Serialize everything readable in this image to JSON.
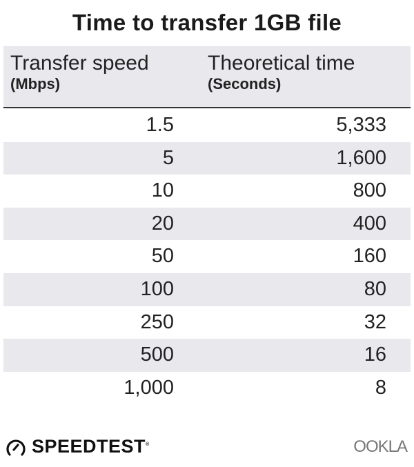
{
  "chart_data": {
    "type": "table",
    "title": "Time to transfer 1GB file",
    "columns": [
      {
        "label": "Transfer speed",
        "unit": "(Mbps)"
      },
      {
        "label": "Theoretical time",
        "unit": "(Seconds)"
      }
    ],
    "rows": [
      [
        "1.5",
        "5,333"
      ],
      [
        "5",
        "1,600"
      ],
      [
        "10",
        "800"
      ],
      [
        "20",
        "400"
      ],
      [
        "50",
        "160"
      ],
      [
        "100",
        "80"
      ],
      [
        "250",
        "32"
      ],
      [
        "500",
        "16"
      ],
      [
        "1,000",
        "8"
      ]
    ],
    "colors": {
      "header_bg": "#e9e8ed",
      "alt_row_bg": "#e9e8ed",
      "text": "#222222"
    }
  },
  "footer": {
    "left_logo": "SPEEDTEST",
    "left_logo_mark": "®",
    "right_logo": "OOKLA",
    "icons": [
      "speedometer-icon"
    ]
  }
}
